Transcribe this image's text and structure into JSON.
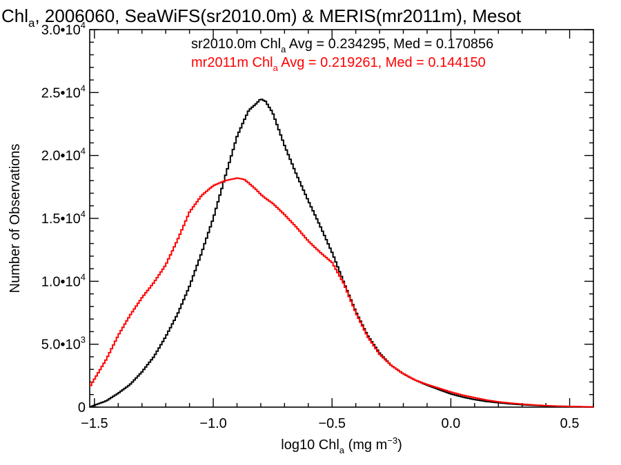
{
  "chart_data": {
    "type": "line",
    "style": "histogram-step",
    "title": {
      "prefix": "Chl",
      "sub": "a",
      "rest": ", 2006060, SeaWiFS(sr2010.0m) & MERIS(mr2011m), Mesot"
    },
    "xlabel": {
      "prefix": "log10 Chl",
      "sub": "a",
      "mid": " (mg m",
      "sup": "−3",
      "suffix": ")"
    },
    "ylabel": "Number of Observations",
    "xlim": [
      -1.52,
      0.6
    ],
    "ylim": [
      0,
      30000
    ],
    "xticks": [
      {
        "value": -1.5,
        "label": "−1.5"
      },
      {
        "value": -1.0,
        "label": "−1.0"
      },
      {
        "value": -0.5,
        "label": "−0.5"
      },
      {
        "value": 0.0,
        "label": "0.0"
      },
      {
        "value": 0.5,
        "label": "0.5"
      }
    ],
    "yticks": [
      {
        "value": 0,
        "mantissa": "0",
        "exp": ""
      },
      {
        "value": 5000,
        "mantissa": "5.0•10",
        "exp": "3"
      },
      {
        "value": 10000,
        "mantissa": "1.0•10",
        "exp": "4"
      },
      {
        "value": 15000,
        "mantissa": "1.5•10",
        "exp": "4"
      },
      {
        "value": 20000,
        "mantissa": "2.0•10",
        "exp": "4"
      },
      {
        "value": 25000,
        "mantissa": "2.5•10",
        "exp": "4"
      },
      {
        "value": 30000,
        "mantissa": "3.0•10",
        "exp": "4"
      }
    ],
    "annotations": [
      {
        "prefix": "sr2010.0m Chl",
        "sub": "a",
        "rest": " Avg = 0.234295, Med = 0.170856",
        "color": "#000000"
      },
      {
        "prefix": "mr2011m Chl",
        "sub": "a",
        "rest": " Avg = 0.219261, Med = 0.144150",
        "color": "#ff0000"
      }
    ],
    "x": [
      -1.52,
      -1.45,
      -1.4,
      -1.35,
      -1.3,
      -1.25,
      -1.2,
      -1.15,
      -1.1,
      -1.05,
      -1.0,
      -0.95,
      -0.9,
      -0.87,
      -0.85,
      -0.82,
      -0.8,
      -0.78,
      -0.75,
      -0.7,
      -0.65,
      -0.6,
      -0.55,
      -0.5,
      -0.45,
      -0.4,
      -0.35,
      -0.3,
      -0.25,
      -0.2,
      -0.15,
      -0.1,
      -0.05,
      0.0,
      0.05,
      0.1,
      0.15,
      0.2,
      0.25,
      0.3,
      0.35,
      0.4,
      0.45,
      0.5,
      0.55,
      0.6
    ],
    "series": [
      {
        "name": "sr2010.0m",
        "color": "#000000",
        "values": [
          0,
          500,
          1100,
          1800,
          2800,
          4000,
          5600,
          7400,
          9600,
          12200,
          15000,
          18300,
          21500,
          22800,
          23600,
          24100,
          24500,
          24300,
          23400,
          20800,
          18500,
          16400,
          14400,
          12300,
          9900,
          7600,
          5700,
          4300,
          3300,
          2650,
          2150,
          1750,
          1400,
          1050,
          800,
          600,
          450,
          350,
          260,
          190,
          140,
          100,
          70,
          50,
          30,
          20
        ]
      },
      {
        "name": "mr2011m",
        "color": "#ff0000",
        "values": [
          1600,
          3800,
          5700,
          7300,
          8700,
          9900,
          11300,
          13300,
          15500,
          16800,
          17600,
          18000,
          18200,
          18100,
          17800,
          17300,
          16900,
          16600,
          16200,
          15300,
          14300,
          13200,
          12300,
          11500,
          9800,
          7500,
          5600,
          4200,
          3300,
          2650,
          2150,
          1800,
          1500,
          1200,
          950,
          750,
          560,
          420,
          320,
          240,
          170,
          120,
          80,
          55,
          35,
          20
        ]
      }
    ]
  }
}
